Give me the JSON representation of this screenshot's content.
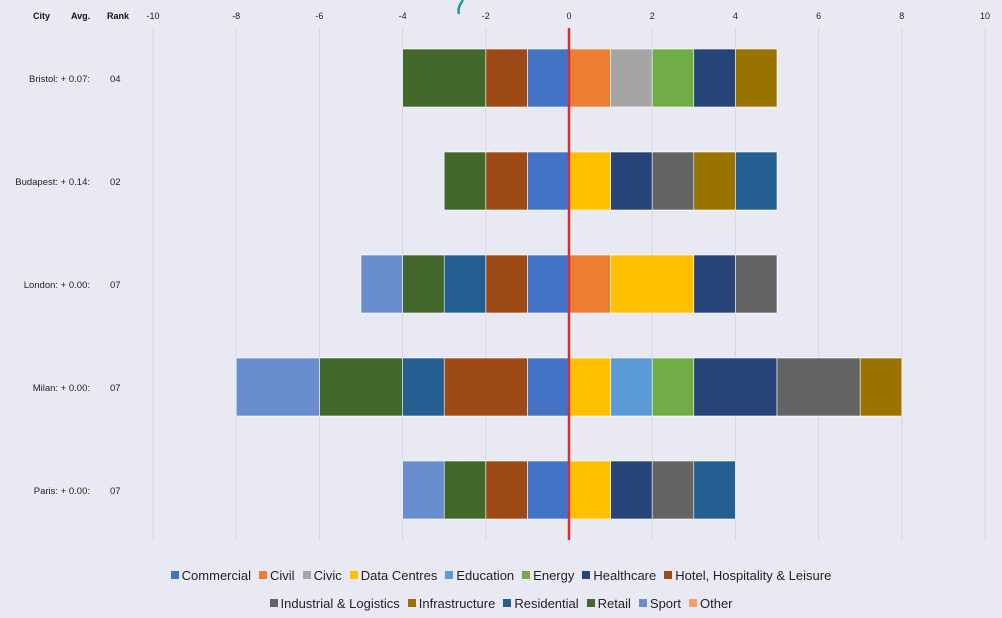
{
  "table_headers": {
    "city": "City",
    "avg": "Avg.",
    "rank": "Rank"
  },
  "chart_data": {
    "type": "bar",
    "orientation": "horizontal",
    "stacked": true,
    "diverging": true,
    "title": "",
    "xlabel": "",
    "ylabel": "",
    "xlim": [
      -10,
      10
    ],
    "x_ticks": [
      "-10",
      "-8",
      "-6",
      "-4",
      "-2",
      "0",
      "2",
      "4",
      "6",
      "8",
      "10"
    ],
    "grid": "vertical",
    "legend_position": "bottom",
    "zero_line_color": "#d32f2f",
    "categories": [
      {
        "city": "Bristol:",
        "avg": "+ 0.07:",
        "rank": "04"
      },
      {
        "city": "Budapest:",
        "avg": "+ 0.14:",
        "rank": "02"
      },
      {
        "city": "London:",
        "avg": "+ 0.00:",
        "rank": "07"
      },
      {
        "city": "Milan:",
        "avg": "+ 0.00:",
        "rank": "07"
      },
      {
        "city": "Paris:",
        "avg": "+ 0.00:",
        "rank": "07"
      }
    ],
    "series": [
      {
        "name": "Commercial",
        "color": "#4472c4",
        "values": [
          -1,
          -1,
          -1,
          -1,
          -1
        ]
      },
      {
        "name": "Hotel, Hospitality & Leisure",
        "color": "#9e4a16",
        "values": [
          -1,
          -1,
          -1,
          -2,
          -1
        ]
      },
      {
        "name": "Residential",
        "color": "#255e91",
        "values": [
          0,
          0,
          -1,
          -1,
          0
        ]
      },
      {
        "name": "Retail",
        "color": "#43682b",
        "values": [
          -2,
          -1,
          -1,
          -2,
          -1
        ]
      },
      {
        "name": "Sport",
        "color": "#698ed0",
        "values": [
          0,
          0,
          -1,
          -2,
          -1
        ]
      },
      {
        "name": "Other",
        "color": "#ed7d31",
        "values": [
          1,
          0,
          1,
          0,
          0
        ]
      },
      {
        "name": "Data Centres",
        "color": "#ffc000",
        "values": [
          0,
          1,
          2,
          1,
          1
        ]
      },
      {
        "name": "Education",
        "color": "#5b9bd5",
        "values": [
          0,
          0,
          0,
          1,
          0
        ]
      },
      {
        "name": "Civic",
        "color": "#a5a5a5",
        "values": [
          1,
          0,
          0,
          0,
          0
        ]
      },
      {
        "name": "Energy",
        "color": "#70ad47",
        "values": [
          1,
          0,
          0,
          1,
          0
        ]
      },
      {
        "name": "Healthcare",
        "color": "#264478",
        "values": [
          1,
          1,
          1,
          2,
          1
        ]
      },
      {
        "name": "Industrial & Logistics",
        "color": "#636363",
        "values": [
          0,
          1,
          1,
          2,
          1
        ]
      },
      {
        "name": "Infrastructure",
        "color": "#997300",
        "values": [
          1,
          1,
          0,
          1,
          0
        ]
      },
      {
        "name": "Residential",
        "color": "#255e91",
        "values": [
          0,
          1,
          0,
          0,
          1
        ]
      }
    ],
    "legend": [
      [
        {
          "name": "Commercial",
          "color": "#4472c4"
        },
        {
          "name": "Civil",
          "color": "#ed7d31"
        },
        {
          "name": "Civic",
          "color": "#a5a5a5"
        },
        {
          "name": "Data Centres",
          "color": "#ffc000"
        },
        {
          "name": "Education",
          "color": "#5b9bd5"
        },
        {
          "name": "Energy",
          "color": "#70ad47"
        },
        {
          "name": "Healthcare",
          "color": "#264478"
        },
        {
          "name": "Hotel, Hospitality & Leisure",
          "color": "#9e4a16"
        }
      ],
      [
        {
          "name": "Industrial & Logistics",
          "color": "#636363"
        },
        {
          "name": "Infrastructure",
          "color": "#997300"
        },
        {
          "name": "Residential",
          "color": "#255e91"
        },
        {
          "name": "Retail",
          "color": "#43682b"
        },
        {
          "name": "Sport",
          "color": "#698ed0"
        },
        {
          "name": "Other",
          "color": "#f4a069"
        }
      ]
    ]
  }
}
